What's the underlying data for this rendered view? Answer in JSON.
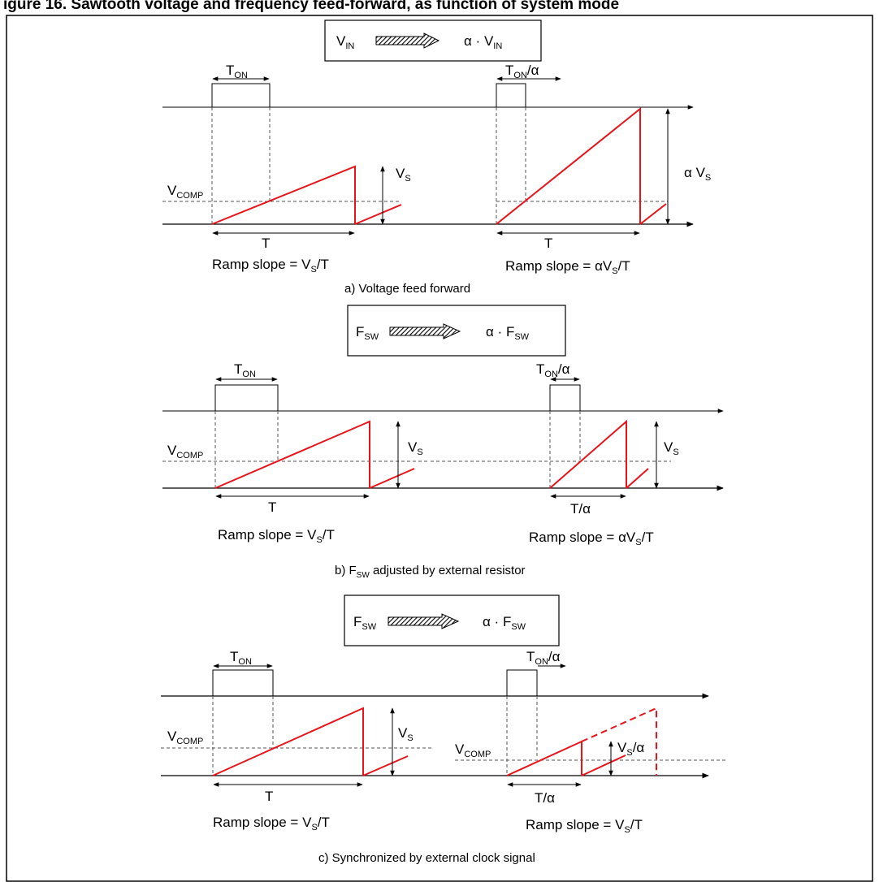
{
  "heading": "igure 16. Sawtooth voltage and frequency feed-forward, as function of system mode",
  "colors": {
    "ramp": "#e8141a",
    "line": "#000000",
    "dashed": "#555555"
  },
  "icons": {
    "arrow": "hatched-arrow-icon"
  },
  "panels": [
    {
      "caption": "a) Voltage feed forward",
      "transform": {
        "from_main": "V",
        "from_sub": "IN",
        "to_prefix": "α · ",
        "to_main": "V",
        "to_sub": "IN"
      },
      "left": {
        "ton": {
          "main": "T",
          "sub": "ON",
          "suffix": ""
        },
        "vcomp": {
          "main": "V",
          "sub": "COMP"
        },
        "amp": {
          "prefix": "",
          "main": "V",
          "sub": "S",
          "suffix": ""
        },
        "period": "T",
        "slope": {
          "prefix": "Ramp slope = ",
          "mid": "V",
          "sub": "S",
          "suffix": "/T"
        }
      },
      "right": {
        "ton": {
          "main": "T",
          "sub": "ON",
          "suffix": "/α"
        },
        "amp": {
          "prefix": "α ",
          "main": "V",
          "sub": "S",
          "suffix": ""
        },
        "period": "T",
        "slope": {
          "prefix": "Ramp slope = ",
          "mid": "αV",
          "sub": "S",
          "suffix": "/T"
        }
      }
    },
    {
      "caption_main": "b) F",
      "caption_sub": "SW",
      "caption_rest": " adjusted by external resistor",
      "transform": {
        "from_main": "F",
        "from_sub": "SW",
        "to_prefix": "α · ",
        "to_main": "F",
        "to_sub": "SW"
      },
      "left": {
        "ton": {
          "main": "T",
          "sub": "ON",
          "suffix": ""
        },
        "vcomp": {
          "main": "V",
          "sub": "COMP"
        },
        "amp": {
          "prefix": "",
          "main": "V",
          "sub": "S",
          "suffix": ""
        },
        "period": "T",
        "slope": {
          "prefix": "Ramp slope = ",
          "mid": "V",
          "sub": "S",
          "suffix": "/T"
        }
      },
      "right": {
        "ton": {
          "main": "T",
          "sub": "ON",
          "suffix": "/α"
        },
        "amp": {
          "prefix": "",
          "main": "V",
          "sub": "S",
          "suffix": ""
        },
        "period": "T/α",
        "slope": {
          "prefix": "Ramp slope = ",
          "mid": "αV",
          "sub": "S",
          "suffix": "/T"
        }
      }
    },
    {
      "caption": "c) Synchronized by external clock signal",
      "transform": {
        "from_main": "F",
        "from_sub": "SW",
        "to_prefix": "α · ",
        "to_main": "F",
        "to_sub": "SW"
      },
      "left": {
        "ton": {
          "main": "T",
          "sub": "ON",
          "suffix": ""
        },
        "vcomp": {
          "main": "V",
          "sub": "COMP"
        },
        "amp": {
          "prefix": "",
          "main": "V",
          "sub": "S",
          "suffix": ""
        },
        "period": "T",
        "slope": {
          "prefix": "Ramp slope = ",
          "mid": "V",
          "sub": "S",
          "suffix": "/T"
        }
      },
      "right": {
        "ton": {
          "main": "T",
          "sub": "ON",
          "suffix": "/α"
        },
        "vcomp": {
          "main": "V",
          "sub": "COMP"
        },
        "amp": {
          "prefix": "",
          "main": "V",
          "sub": "S",
          "suffix": "/α"
        },
        "period": "T/α",
        "slope": {
          "prefix": "Ramp slope = ",
          "mid": "V",
          "sub": "S",
          "suffix": "/T"
        }
      }
    }
  ]
}
